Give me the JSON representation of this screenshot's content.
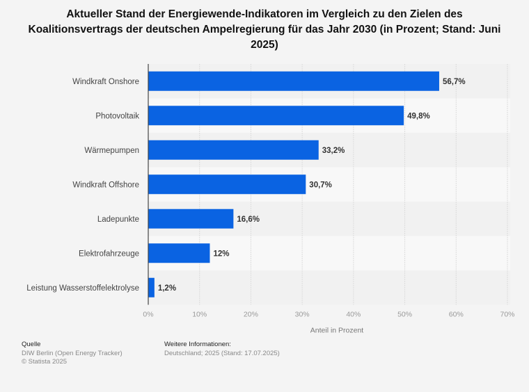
{
  "chart_data": {
    "type": "bar",
    "orientation": "horizontal",
    "title": "Aktueller Stand der Energiewende-Indikatoren im Vergleich zu den Zielen des Koalitionsvertrags der deutschen Ampelregierung für das Jahr 2030 (in Prozent; Stand: Juni 2025)",
    "categories": [
      "Windkraft Onshore",
      "Photovoltaik",
      "Wärmepumpen",
      "Windkraft Offshore",
      "Ladepunkte",
      "Elektrofahrzeuge",
      "Leistung Wasserstoffelektrolyse"
    ],
    "values": [
      56.7,
      49.8,
      33.2,
      30.7,
      16.6,
      12,
      1.2
    ],
    "value_labels": [
      "56,7%",
      "49,8%",
      "33,2%",
      "30,7%",
      "16,6%",
      "12%",
      "1,2%"
    ],
    "xlabel": "Anteil in Prozent",
    "ylabel": "",
    "xlim": [
      0,
      70
    ],
    "xticks": [
      0,
      10,
      20,
      30,
      40,
      50,
      60,
      70
    ],
    "xtick_labels": [
      "0%",
      "10%",
      "20%",
      "30%",
      "40%",
      "50%",
      "60%",
      "70%"
    ],
    "grid": true,
    "legend": "none",
    "bar_color": "#0a63e2"
  },
  "footer": {
    "source_heading": "Quelle",
    "source_text": "DIW Berlin (Open Energy Tracker)",
    "copyright": "© Statista 2025",
    "info_heading": "Weitere Informationen:",
    "info_text": "Deutschland; 2025 (Stand: 17.07.2025)"
  }
}
